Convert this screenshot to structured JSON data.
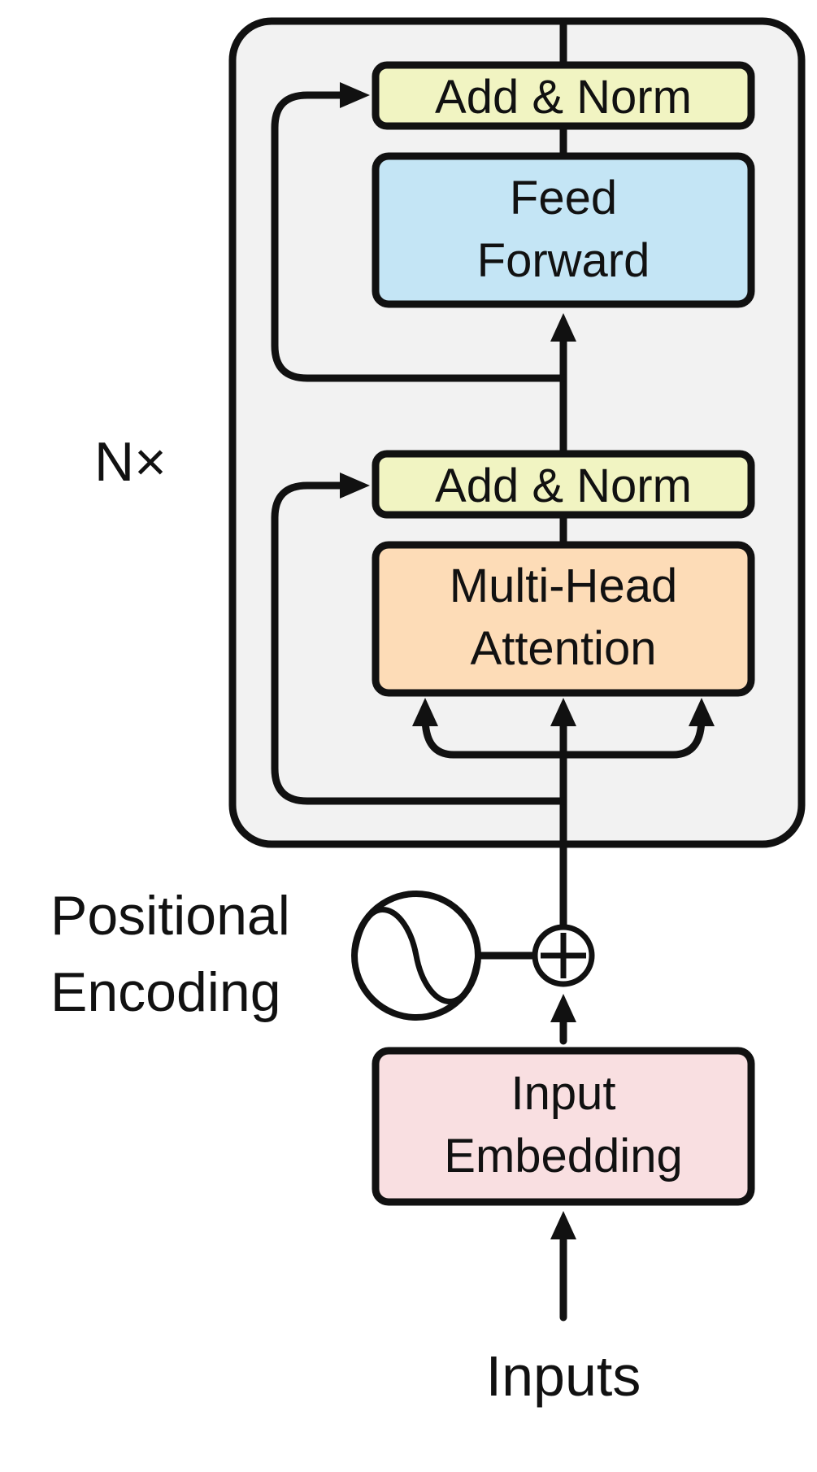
{
  "encoder_block": {
    "repeat_label": "N×",
    "add_norm_top": "Add & Norm",
    "feed_forward": [
      "Feed",
      "Forward"
    ],
    "add_norm_bottom": "Add & Norm",
    "attention": [
      "Multi-Head",
      "Attention"
    ]
  },
  "positional_encoding": {
    "label": [
      "Positional",
      "Encoding"
    ]
  },
  "input_embedding": [
    "Input",
    "Embedding"
  ],
  "inputs_label": "Inputs",
  "colors": {
    "block_bg": "#f2f2f2",
    "add_norm": "#f1f4c2",
    "feed_forward": "#c4e5f5",
    "attention": "#fddcb7",
    "input_embedding": "#f9dfe1",
    "stroke": "#111111"
  }
}
